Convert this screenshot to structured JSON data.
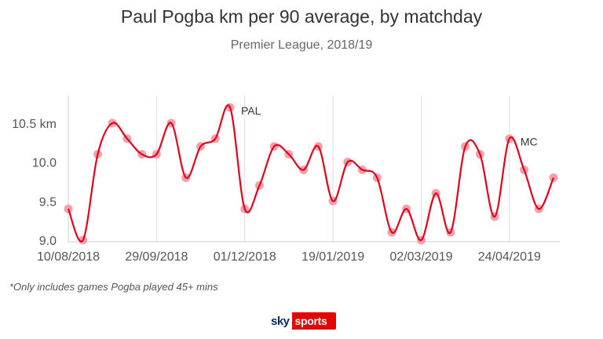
{
  "chart_data": {
    "type": "line",
    "title": "Paul Pogba km per 90 average, by matchday",
    "subtitle": "Premier League, 2018/19",
    "y_tick_labels": [
      "9.0",
      "9.5",
      "10.0",
      "10.5 km"
    ],
    "y_ticks": [
      9.0,
      9.5,
      10.0,
      10.5
    ],
    "ylim": [
      8.98,
      10.85
    ],
    "x_tick_labels": [
      "10/08/2018",
      "29/09/2018",
      "01/12/2018",
      "19/01/2019",
      "02/03/2019",
      "24/04/2019"
    ],
    "x_tick_index": [
      0,
      6,
      12,
      18,
      24,
      30
    ],
    "series": [
      {
        "name": "km per 90",
        "color": "#e0001b",
        "marker_color": "#f4a0a8",
        "values": [
          9.4,
          9.0,
          10.1,
          10.5,
          10.3,
          10.1,
          10.1,
          10.5,
          9.8,
          10.2,
          10.3,
          10.7,
          9.4,
          9.7,
          10.2,
          10.1,
          9.9,
          10.2,
          9.5,
          10.0,
          9.9,
          9.8,
          9.1,
          9.4,
          9.0,
          9.6,
          9.1,
          10.2,
          10.1,
          9.3,
          10.3,
          9.9,
          9.4,
          9.8
        ]
      }
    ],
    "annotations": [
      {
        "text": "PAL",
        "index": 11
      },
      {
        "text": "MC",
        "index": 30
      }
    ],
    "grid": "vertical"
  },
  "footnote": "*Only includes games Pogba played 45+ mins",
  "logo": {
    "sky": "sky",
    "sports": "sports"
  }
}
